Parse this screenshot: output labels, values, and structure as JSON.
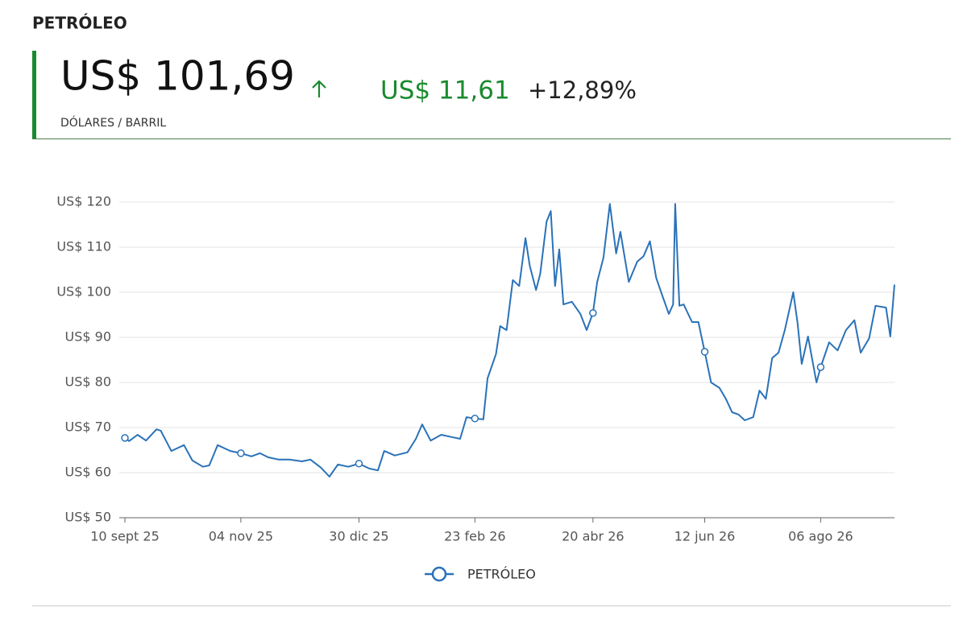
{
  "header": {
    "title": "PETRÓLEO",
    "price": "US$ 101,69",
    "change": "US$ 11,61",
    "change_pct": "+12,89%",
    "unit": "DÓLARES / BARRIL"
  },
  "chart_data": {
    "type": "line",
    "x": [
      "2025-09-10",
      "2025-09-12",
      "2025-09-16",
      "2025-09-20",
      "2025-09-25",
      "2025-09-27",
      "2025-10-02",
      "2025-10-08",
      "2025-10-12",
      "2025-10-17",
      "2025-10-20",
      "2025-10-24",
      "2025-10-30",
      "2025-11-04",
      "2025-11-09",
      "2025-11-13",
      "2025-11-17",
      "2025-11-22",
      "2025-11-27",
      "2025-12-03",
      "2025-12-07",
      "2025-12-12",
      "2025-12-16",
      "2025-12-20",
      "2025-12-25",
      "2025-12-30",
      "2026-01-04",
      "2026-01-08",
      "2026-01-11",
      "2026-01-16",
      "2026-01-22",
      "2026-01-26",
      "2026-01-29",
      "2026-02-02",
      "2026-02-07",
      "2026-02-12",
      "2026-02-16",
      "2026-02-19",
      "2026-02-23",
      "2026-02-27",
      "2026-03-01",
      "2026-03-05",
      "2026-03-07",
      "2026-03-10",
      "2026-03-13",
      "2026-03-16",
      "2026-03-19",
      "2026-03-21",
      "2026-03-24",
      "2026-03-26",
      "2026-03-29",
      "2026-03-31",
      "2026-04-02",
      "2026-04-04",
      "2026-04-06",
      "2026-04-10",
      "2026-04-14",
      "2026-04-17",
      "2026-04-20",
      "2026-04-22",
      "2026-04-25",
      "2026-04-28",
      "2026-05-01",
      "2026-05-03",
      "2026-05-07",
      "2026-05-11",
      "2026-05-14",
      "2026-05-17",
      "2026-05-20",
      "2026-05-23",
      "2026-05-26",
      "2026-05-28",
      "2026-05-29",
      "2026-05-31",
      "2026-06-02",
      "2026-06-06",
      "2026-06-09",
      "2026-06-12",
      "2026-06-15",
      "2026-06-19",
      "2026-06-22",
      "2026-06-25",
      "2026-06-28",
      "2026-07-01",
      "2026-07-05",
      "2026-07-08",
      "2026-07-11",
      "2026-07-14",
      "2026-07-17",
      "2026-07-20",
      "2026-07-24",
      "2026-07-26",
      "2026-07-28",
      "2026-07-31",
      "2026-08-04",
      "2026-08-06",
      "2026-08-10",
      "2026-08-14",
      "2026-08-18",
      "2026-08-22",
      "2026-08-25",
      "2026-08-29",
      "2026-09-01",
      "2026-09-06",
      "2026-09-08",
      "2026-09-10"
    ],
    "series": [
      {
        "name": "PETRÓLEO",
        "color": "#2a72b8",
        "values": [
          67.7,
          67.0,
          68.4,
          67.1,
          69.6,
          69.3,
          64.8,
          66.1,
          62.7,
          61.3,
          61.6,
          66.1,
          64.8,
          64.3,
          63.6,
          64.3,
          63.4,
          62.9,
          62.9,
          62.5,
          62.9,
          61.1,
          59.1,
          61.8,
          61.3,
          62.0,
          60.9,
          60.5,
          64.8,
          63.8,
          64.5,
          67.5,
          70.7,
          67.1,
          68.4,
          67.9,
          67.5,
          72.3,
          72.0,
          71.8,
          80.9,
          86.3,
          92.5,
          91.6,
          102.7,
          101.4,
          112.0,
          105.9,
          100.5,
          104.1,
          115.7,
          118.0,
          101.4,
          109.5,
          97.3,
          97.9,
          95.2,
          91.6,
          95.4,
          102.3,
          107.7,
          119.6,
          108.6,
          113.4,
          102.3,
          106.8,
          108.0,
          111.3,
          103.2,
          99.1,
          95.2,
          97.3,
          119.6,
          97.0,
          97.3,
          93.4,
          93.4,
          86.8,
          80.0,
          78.8,
          76.4,
          73.4,
          72.9,
          71.6,
          72.3,
          78.2,
          76.4,
          85.4,
          86.6,
          91.6,
          100.0,
          93.4,
          84.1,
          90.2,
          80.0,
          83.4,
          88.9,
          87.1,
          91.6,
          93.8,
          86.6,
          89.8,
          97.0,
          96.6,
          90.2,
          101.69
        ]
      }
    ],
    "xlim": [
      "2025-09-10",
      "2026-09-10"
    ],
    "xticks": [
      {
        "value": "2025-09-10",
        "label": "10 sept 25"
      },
      {
        "value": "2025-11-04",
        "label": "04 nov 25"
      },
      {
        "value": "2025-12-30",
        "label": "30 dic 25"
      },
      {
        "value": "2026-02-23",
        "label": "23 feb 26"
      },
      {
        "value": "2026-04-20",
        "label": "20 abr 26"
      },
      {
        "value": "2026-06-12",
        "label": "12 jun 26"
      },
      {
        "value": "2026-08-06",
        "label": "06 ago 26"
      }
    ],
    "ylim": [
      50,
      120
    ],
    "yticks": [
      {
        "value": 50,
        "label": "US$ 50"
      },
      {
        "value": 60,
        "label": "US$ 60"
      },
      {
        "value": 70,
        "label": "US$ 70"
      },
      {
        "value": 80,
        "label": "US$ 80"
      },
      {
        "value": 90,
        "label": "US$ 90"
      },
      {
        "value": 100,
        "label": "US$ 100"
      },
      {
        "value": 110,
        "label": "US$ 110"
      },
      {
        "value": 120,
        "label": "US$ 120"
      }
    ],
    "grid": true,
    "legend": "bottom"
  }
}
